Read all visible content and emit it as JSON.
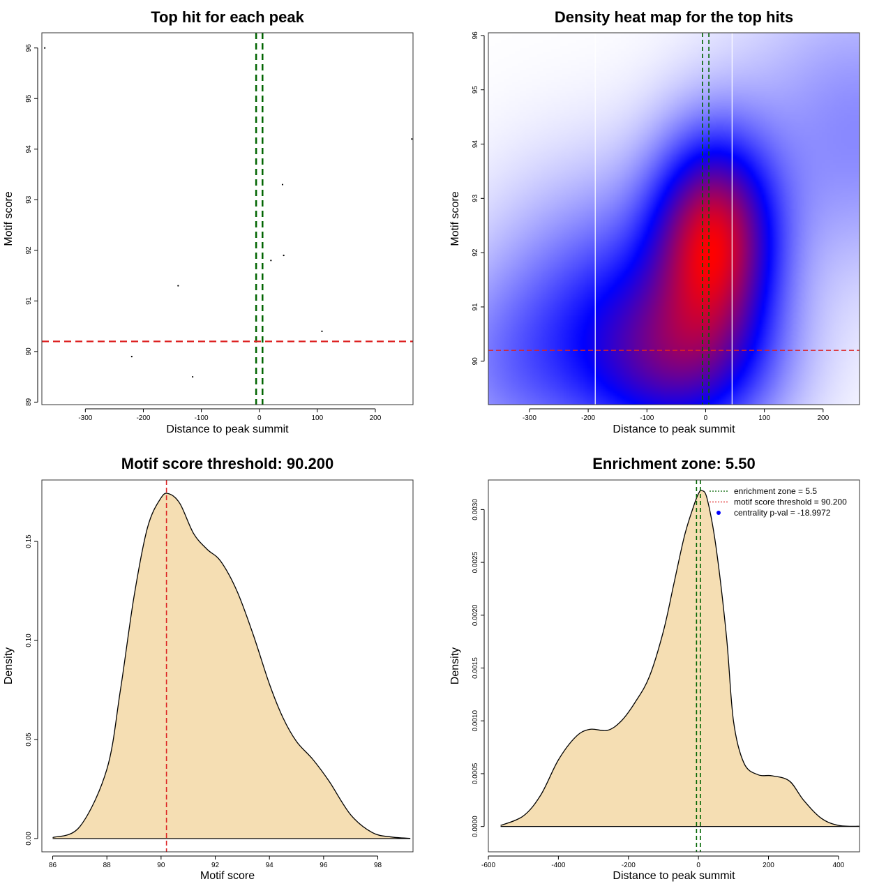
{
  "chart_data": [
    {
      "type": "scatter",
      "title": "Top hit for each peak",
      "xlabel": "Distance to peak summit",
      "ylabel": "Motif score",
      "xlim": [
        -375,
        265
      ],
      "ylim": [
        88.95,
        96.3
      ],
      "xticks": [
        -300,
        -200,
        -100,
        0,
        100,
        200
      ],
      "yticks": [
        89,
        90,
        91,
        92,
        93,
        94,
        95,
        96
      ],
      "points": [
        {
          "x": -370,
          "y": 96.0
        },
        {
          "x": -220,
          "y": 89.9
        },
        {
          "x": -140,
          "y": 91.3
        },
        {
          "x": -115,
          "y": 89.5
        },
        {
          "x": 20,
          "y": 91.8
        },
        {
          "x": 40,
          "y": 93.3
        },
        {
          "x": 42,
          "y": 91.9
        },
        {
          "x": 108,
          "y": 90.4
        },
        {
          "x": 263,
          "y": 94.2
        }
      ],
      "vlines": [
        -5.5,
        5.5
      ],
      "vline_color": "#006400",
      "hline": 90.2,
      "hline_color": "#dd2222"
    },
    {
      "type": "heatmap",
      "title": "Density heat map for the top hits",
      "xlabel": "Distance to peak summit",
      "ylabel": "Motif score",
      "xlim": [
        -370,
        262
      ],
      "ylim": [
        89.2,
        96.05
      ],
      "xticks": [
        -300,
        -200,
        -100,
        0,
        100,
        200
      ],
      "yticks": [
        90,
        91,
        92,
        93,
        94,
        95,
        96
      ],
      "color_scale": [
        "#ffffff",
        "#0000ff",
        "#ff0000"
      ],
      "density_peak": {
        "x": 15,
        "y": 92.3
      },
      "white_vlines": [
        -188,
        45
      ],
      "vlines": [
        -5.5,
        5.5
      ],
      "vline_color": "#006400",
      "hline": 90.2,
      "hline_color": "#dd2222"
    },
    {
      "type": "area",
      "title": "Motif score threshold: 90.200",
      "xlabel": "Motif score",
      "ylabel": "Density",
      "xlim": [
        85.6,
        99.3
      ],
      "ylim": [
        -0.0067,
        0.181
      ],
      "xticks": [
        86,
        88,
        90,
        92,
        94,
        96,
        98
      ],
      "yticks": [
        0.0,
        0.05,
        0.1,
        0.15
      ],
      "ytick_labels": [
        "0.00",
        "0.05",
        "0.10",
        "0.15"
      ],
      "x": [
        86.0,
        87.0,
        88.0,
        88.5,
        89.0,
        89.5,
        90.0,
        90.3,
        90.7,
        91.2,
        91.7,
        92.2,
        92.8,
        93.4,
        94.0,
        94.5,
        95.0,
        95.6,
        96.2,
        97.0,
        97.8,
        98.5,
        99.2
      ],
      "y": [
        0.0005,
        0.006,
        0.035,
        0.075,
        0.122,
        0.157,
        0.172,
        0.174,
        0.169,
        0.154,
        0.146,
        0.14,
        0.125,
        0.103,
        0.078,
        0.061,
        0.049,
        0.04,
        0.029,
        0.012,
        0.003,
        0.0008,
        0.0001
      ],
      "fill": "#f5deb3",
      "vline": 90.2,
      "vline_color": "#dd2222"
    },
    {
      "type": "area",
      "title": "Enrichment zone: 5.50",
      "xlabel": "Distance to peak summit",
      "ylabel": "Density",
      "xlim": [
        -600,
        460
      ],
      "ylim": [
        -0.00024,
        0.00328
      ],
      "xticks": [
        -600,
        -400,
        -200,
        0,
        200,
        400
      ],
      "yticks": [
        0,
        0.0005,
        0.001,
        0.0015,
        0.002,
        0.0025,
        0.003
      ],
      "ytick_labels": [
        "0.0000",
        "0.0005",
        "0.0010",
        "0.0015",
        "0.0020",
        "0.0025",
        "0.0030"
      ],
      "x": [
        -565,
        -500,
        -450,
        -400,
        -350,
        -310,
        -260,
        -220,
        -180,
        -140,
        -100,
        -70,
        -40,
        -15,
        0,
        10,
        25,
        50,
        80,
        100,
        130,
        170,
        210,
        260,
        300,
        350,
        400,
        460
      ],
      "y": [
        1e-05,
        0.0001,
        0.0003,
        0.00063,
        0.00085,
        0.00092,
        0.00091,
        0.001,
        0.00118,
        0.00142,
        0.00185,
        0.0023,
        0.00275,
        0.00302,
        0.00315,
        0.00318,
        0.0031,
        0.00265,
        0.0018,
        0.001,
        0.0006,
        0.00049,
        0.00048,
        0.00043,
        0.00025,
        8e-05,
        1e-05,
        2e-06
      ],
      "fill": "#f5deb3",
      "vlines": [
        -5.5,
        5.5
      ],
      "vline_color": "#006400",
      "legend_position": "top-right",
      "legend": [
        {
          "label": "enrichment zone = 5.5",
          "color": "#006400",
          "symbol": "line"
        },
        {
          "label": "motif score threshold = 90.200",
          "color": "#dd2222",
          "symbol": "line"
        },
        {
          "label": "centrality p-val = -18.9972",
          "color": "#0000ff",
          "symbol": "dot"
        }
      ]
    }
  ]
}
